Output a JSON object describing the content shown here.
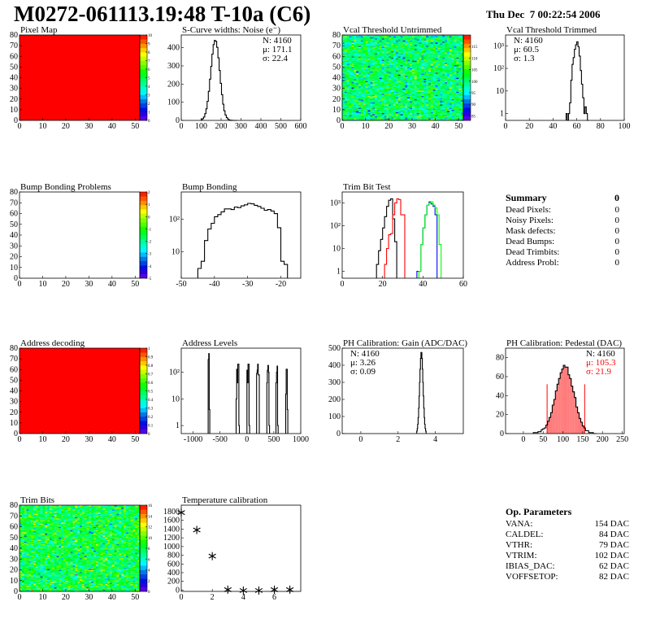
{
  "header": {
    "title": "M0272-061113.19:48 T-10a (C6)",
    "date": "Thu Dec  7 00:22:54 2006"
  },
  "summary": {
    "title": "Summary",
    "total": "0",
    "rows": [
      {
        "label": "Dead Pixels:",
        "value": "0"
      },
      {
        "label": "Noisy Pixels:",
        "value": "0"
      },
      {
        "label": "Mask defects:",
        "value": "0"
      },
      {
        "label": "Dead Bumps:",
        "value": "0"
      },
      {
        "label": "Dead Trimbits:",
        "value": "0"
      },
      {
        "label": "Address Probl:",
        "value": "0"
      }
    ]
  },
  "op_parameters": {
    "title": "Op. Parameters",
    "rows": [
      {
        "label": "VANA:",
        "value": "154 DAC"
      },
      {
        "label": "CALDEL:",
        "value": "84 DAC"
      },
      {
        "label": "VTHR:",
        "value": "79 DAC"
      },
      {
        "label": "VTRIM:",
        "value": "102 DAC"
      },
      {
        "label": "IBIAS_DAC:",
        "value": "62 DAC"
      },
      {
        "label": "VOFFSETOP:",
        "value": "82 DAC"
      }
    ]
  },
  "chart_data": [
    {
      "type": "heatmap",
      "title": "Pixel Map",
      "xlim": [
        0,
        52
      ],
      "ylim": [
        0,
        80
      ],
      "xticks": [
        "0",
        "10",
        "20",
        "30",
        "40",
        "50"
      ],
      "yticks": [
        "0",
        "10",
        "20",
        "30",
        "40",
        "50",
        "60",
        "70",
        "80"
      ],
      "zlim": [
        0,
        10
      ],
      "zticks": [
        "0",
        "1",
        "2",
        "3",
        "4",
        "5",
        "6",
        "7",
        "8",
        "9",
        "10"
      ],
      "fill": "uniform",
      "uniform_value": 10
    },
    {
      "type": "bar",
      "title": "S-Curve widths: Noise (e⁻)",
      "xlim": [
        0,
        600
      ],
      "ylim": [
        0,
        470
      ],
      "log": false,
      "xticks": [
        "0",
        "100",
        "200",
        "300",
        "400",
        "500",
        "600"
      ],
      "yticks": [
        "0",
        "100",
        "200",
        "300",
        "400"
      ],
      "stats": {
        "placement": "top-right",
        "lines": [
          "N: 4160",
          "μ: 171.1",
          "σ: 22.4"
        ]
      },
      "series": [
        {
          "color": "#000000",
          "start": 100,
          "width": 6,
          "values": [
            4,
            10,
            19,
            37,
            64,
            105,
            160,
            227,
            297,
            365,
            417,
            440,
            435,
            402,
            344,
            275,
            204,
            142,
            89,
            53,
            30,
            16,
            8,
            3,
            1,
            1,
            0,
            0,
            0,
            0
          ]
        }
      ]
    },
    {
      "type": "heatmap",
      "title": "Vcal Threshold Untrimmed",
      "xlim": [
        0,
        52
      ],
      "ylim": [
        0,
        80
      ],
      "xticks": [
        "0",
        "10",
        "20",
        "30",
        "40",
        "50"
      ],
      "yticks": [
        "0",
        "10",
        "20",
        "30",
        "40",
        "50",
        "60",
        "70",
        "80"
      ],
      "zlim": [
        83,
        120
      ],
      "zticks": [
        "85",
        "90",
        "95",
        "100",
        "105",
        "110",
        "115"
      ],
      "fill": "noise",
      "mean": 100
    },
    {
      "type": "bar",
      "title": "Vcal Threshold Trimmed",
      "xlim": [
        0,
        100
      ],
      "ylim": [
        0.5,
        3000
      ],
      "log": true,
      "xticks": [
        "0",
        "20",
        "40",
        "60",
        "80",
        "100"
      ],
      "yticks": [
        {
          "v": 1,
          "l": "1"
        },
        {
          "v": 10,
          "l": "10"
        },
        {
          "v": 100,
          "l": "10²"
        },
        {
          "v": 1000,
          "l": "10³"
        }
      ],
      "stats": {
        "placement": "top-left",
        "lines": [
          "N: 4160",
          "μ: 60.5",
          "σ:  1.3"
        ]
      },
      "series": [
        {
          "color": "#000000",
          "start": 51,
          "width": 1,
          "values": [
            1,
            0,
            1,
            3,
            30,
            150,
            300,
            700,
            1100,
            1500,
            900,
            350,
            80,
            20,
            5,
            1,
            2,
            1,
            0
          ]
        }
      ]
    },
    {
      "type": "heatmap",
      "title": "Bump Bonding Problems",
      "xlim": [
        0,
        52
      ],
      "ylim": [
        0,
        80
      ],
      "xticks": [
        "0",
        "10",
        "20",
        "30",
        "40",
        "50"
      ],
      "yticks": [
        "0",
        "10",
        "20",
        "30",
        "40",
        "50",
        "60",
        "70",
        "80"
      ],
      "zlim": [
        -5,
        2
      ],
      "zticks": [
        "-5",
        "-4",
        "-3",
        "-2",
        "-1",
        "0",
        "1",
        "2"
      ],
      "fill": "empty"
    },
    {
      "type": "bar",
      "title": "Bump Bonding",
      "xlim": [
        -50,
        -14
      ],
      "ylim": [
        1.5,
        700
      ],
      "log": true,
      "xticks": [
        "-50",
        "-40",
        "-30",
        "-20"
      ],
      "yticks": [
        {
          "v": 10,
          "l": "10"
        },
        {
          "v": 100,
          "l": "10²"
        }
      ],
      "series": [
        {
          "color": "#000000",
          "start": -45,
          "width": 1,
          "values": [
            3,
            5,
            22,
            50,
            75,
            120,
            140,
            170,
            210,
            210,
            200,
            240,
            230,
            260,
            280,
            310,
            300,
            270,
            250,
            220,
            190,
            200,
            180,
            150,
            55,
            5,
            4
          ]
        }
      ]
    },
    {
      "type": "bar",
      "title": "Trim Bit Test",
      "xlim": [
        0,
        60
      ],
      "ylim": [
        0.5,
        3000
      ],
      "log": true,
      "xticks": [
        "0",
        "20",
        "40",
        "60"
      ],
      "yticks": [
        {
          "v": 1,
          "l": "1"
        },
        {
          "v": 10,
          "l": "10"
        },
        {
          "v": 100,
          "l": "10²"
        },
        {
          "v": 1000,
          "l": "10³"
        }
      ],
      "series": [
        {
          "color": "#000000",
          "start": 17,
          "width": 1,
          "values": [
            2,
            8,
            25,
            80,
            250,
            700,
            1300,
            1500,
            200,
            20
          ]
        },
        {
          "color": "#ff0000",
          "start": 21,
          "width": 1,
          "values": [
            2,
            10,
            40,
            45,
            300,
            1000,
            1500,
            1400,
            300,
            300
          ]
        },
        {
          "color": "#0000ff",
          "start": 37,
          "width": 1,
          "values": [
            1,
            1,
            15,
            80,
            300,
            800,
            1100,
            900,
            700,
            300
          ]
        },
        {
          "color": "#00ff00",
          "start": 38,
          "width": 1,
          "values": [
            1,
            15,
            80,
            300,
            800,
            1000,
            1100,
            800,
            600,
            300,
            15
          ]
        }
      ]
    },
    {
      "type": "heatmap",
      "title": "Address decoding",
      "xlim": [
        0,
        52
      ],
      "ylim": [
        0,
        80
      ],
      "xticks": [
        "0",
        "10",
        "20",
        "30",
        "40",
        "50"
      ],
      "yticks": [
        "0",
        "10",
        "20",
        "30",
        "40",
        "50",
        "60",
        "70",
        "80"
      ],
      "zlim": [
        0,
        1
      ],
      "zticks": [
        "0",
        "0.1",
        "0.2",
        "0.3",
        "0.4",
        "0.5",
        "0.6",
        "0.7",
        "0.8",
        "0.9",
        "1"
      ],
      "fill": "uniform",
      "uniform_value": 1
    },
    {
      "type": "bar",
      "title": "Address Levels",
      "xlim": [
        -1220,
        1000
      ],
      "ylim": [
        0.5,
        800
      ],
      "log": true,
      "xticks": [
        "-1000",
        "-500",
        "0",
        "500",
        "1000"
      ],
      "yticks": [
        {
          "v": 1,
          "l": "1"
        },
        {
          "v": 10,
          "l": "10"
        },
        {
          "v": 100,
          "l": "10²"
        }
      ],
      "series": [
        {
          "color": "#000000",
          "start": -720,
          "width": 10,
          "values": [
            300,
            500,
            4
          ]
        },
        {
          "color": "#000000",
          "start": -200,
          "width": 10,
          "values": [
            10,
            130,
            40,
            200,
            200,
            1
          ]
        },
        {
          "color": "#000000",
          "start": 0,
          "width": 10,
          "values": [
            120,
            40,
            200,
            200,
            1
          ]
        },
        {
          "color": "#000000",
          "start": 180,
          "width": 10,
          "values": [
            90,
            120,
            200,
            80,
            80
          ]
        },
        {
          "color": "#000000",
          "start": 370,
          "width": 10,
          "values": [
            40,
            120,
            180,
            100,
            1
          ]
        },
        {
          "color": "#000000",
          "start": 540,
          "width": 10,
          "values": [
            40,
            100,
            170,
            1
          ]
        },
        {
          "color": "#000000",
          "start": 720,
          "width": 10,
          "values": [
            15,
            130,
            130,
            4
          ]
        }
      ]
    },
    {
      "type": "bar",
      "title": "PH Calibration: Gain (ADC/DAC)",
      "xlim": [
        -1,
        5.5
      ],
      "ylim": [
        0,
        500
      ],
      "log": false,
      "xticks": [
        "0",
        "2",
        "4"
      ],
      "yticks": [
        "0",
        "100",
        "200",
        "300",
        "400",
        "500"
      ],
      "stats": {
        "placement": "top-left",
        "lines": [
          "N: 4160",
          "μ: 3.26",
          "σ: 0.09"
        ]
      },
      "series": [
        {
          "color": "#000000",
          "start": 3.0,
          "width": 0.025,
          "values": [
            15,
            30,
            55,
            94,
            149,
            220,
            300,
            377,
            440,
            475,
            475,
            440,
            377,
            300,
            220,
            149,
            94,
            55,
            30,
            15
          ]
        }
      ]
    },
    {
      "type": "bar",
      "title": "PH Calibration: Pedestal (DAC)",
      "xlim": [
        -45,
        255
      ],
      "ylim": [
        0,
        90
      ],
      "log": false,
      "xticks": [
        "0",
        "50",
        "100",
        "150",
        "200",
        "250"
      ],
      "yticks": [
        "0",
        "20",
        "40",
        "60",
        "80"
      ],
      "stats": {
        "placement": "top-right",
        "lines": [
          "N: 4160",
          "μ: 105.3",
          "σ: 21.9"
        ],
        "colors": [
          "#000000",
          "#ff0000",
          "#ff0000"
        ]
      },
      "fit_range": [
        60,
        155
      ],
      "fit_color": "#ff0000",
      "series": [
        {
          "color": "#000000",
          "start": 25,
          "width": 4,
          "values": [
            1,
            1,
            1,
            2,
            2,
            4,
            5,
            6,
            9,
            13,
            17,
            22,
            30,
            36,
            45,
            52,
            58,
            64,
            68,
            72,
            70,
            70,
            62,
            58,
            50,
            44,
            38,
            28,
            22,
            16,
            12,
            8,
            6,
            3,
            3,
            1,
            1,
            1,
            0,
            0
          ]
        }
      ]
    },
    {
      "type": "heatmap",
      "title": "Trim Bits",
      "xlim": [
        0,
        52
      ],
      "ylim": [
        0,
        80
      ],
      "xticks": [
        "0",
        "10",
        "20",
        "30",
        "40",
        "50"
      ],
      "yticks": [
        "0",
        "10",
        "20",
        "30",
        "40",
        "50",
        "60",
        "70",
        "80"
      ],
      "zlim": [
        0,
        16
      ],
      "zticks": [
        "0",
        "2",
        "4",
        "6",
        "8",
        "10",
        "12",
        "14",
        "16"
      ],
      "fill": "noise",
      "mean": 8
    },
    {
      "type": "scatter",
      "title": "Temperature calibration",
      "xlim": [
        0,
        7.7
      ],
      "ylim": [
        -30,
        1950
      ],
      "xticks": [
        "0",
        "2",
        "4",
        "6"
      ],
      "yticks": [
        "0",
        "200",
        "400",
        "600",
        "800",
        "1000",
        "1200",
        "1400",
        "1600",
        "1800"
      ],
      "marker": "asterisk",
      "x": [
        0,
        1,
        2,
        3,
        4,
        5,
        6,
        7
      ],
      "y": [
        1780,
        1380,
        780,
        10,
        -10,
        -10,
        10,
        10
      ]
    }
  ]
}
